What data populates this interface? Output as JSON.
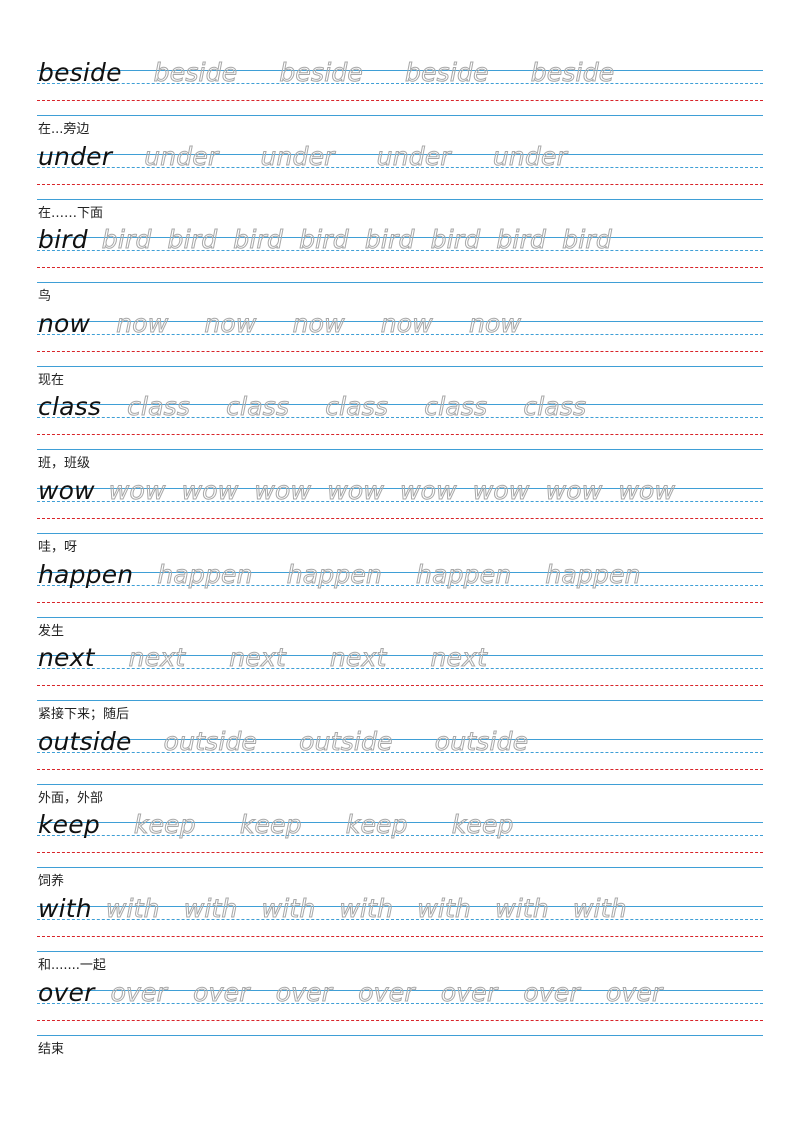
{
  "entries": [
    {
      "word": "beside",
      "meaning": "在...旁边",
      "traces": 4,
      "gap": 42
    },
    {
      "word": "under",
      "meaning": "在……下面",
      "traces": 4,
      "gap": 42
    },
    {
      "word": "bird",
      "meaning": "鸟",
      "traces": 8,
      "gap": 16
    },
    {
      "word": "now",
      "meaning": "现在",
      "traces": 5,
      "gap": 36
    },
    {
      "word": "class",
      "meaning": "班，班级",
      "traces": 5,
      "gap": 36
    },
    {
      "word": "wow",
      "meaning": "哇，呀",
      "traces": 8,
      "gap": 16
    },
    {
      "word": "happen",
      "meaning": "发生",
      "traces": 4,
      "gap": 34
    },
    {
      "word": "next",
      "meaning": "紧接下来；随后",
      "traces": 4,
      "gap": 44
    },
    {
      "word": "outside",
      "meaning": "外面，外部",
      "traces": 3,
      "gap": 42
    },
    {
      "word": "keep",
      "meaning": "饲养",
      "traces": 4,
      "gap": 44
    },
    {
      "word": "with",
      "meaning": "和.......一起",
      "traces": 7,
      "gap": 24
    },
    {
      "word": "over",
      "meaning": "结束",
      "traces": 7,
      "gap": 26
    }
  ],
  "colors": {
    "solid_rule": "#3f9fd6",
    "dashed_rule": "#3f9fd6",
    "baseline": "#d8252a",
    "trace_text": "#a8a8a8",
    "model_text": "#111111"
  }
}
